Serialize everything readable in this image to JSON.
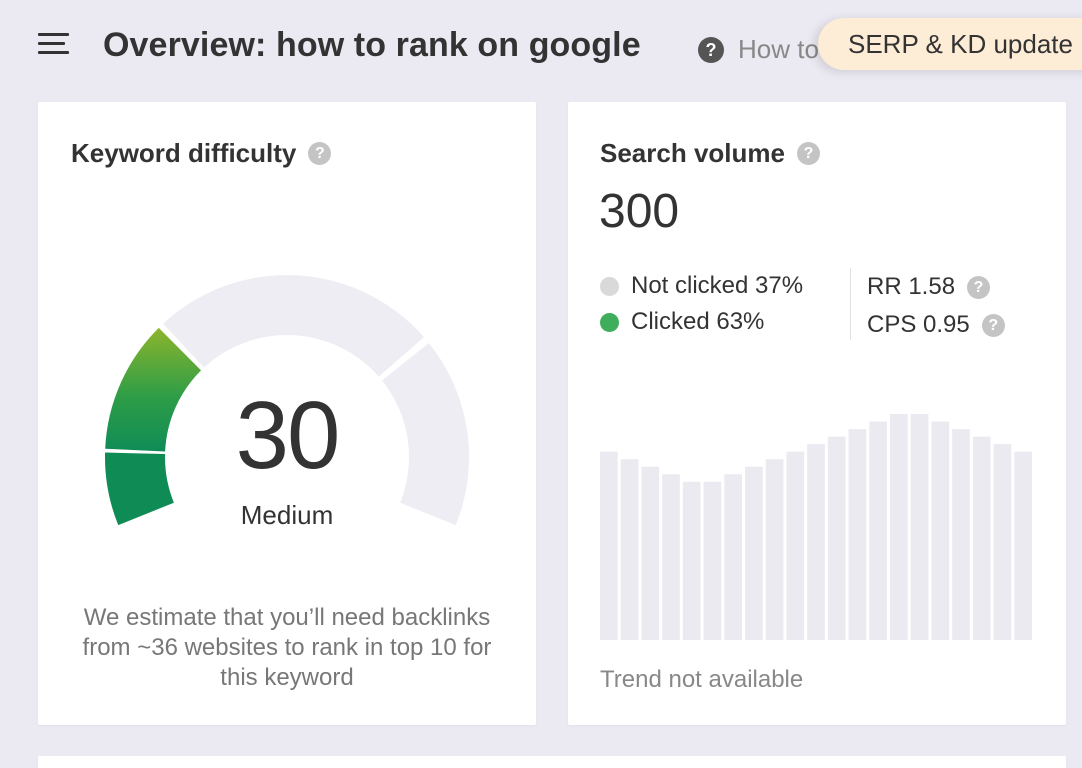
{
  "header": {
    "title": "Overview: how to rank on google",
    "help_icon": "question-icon",
    "help_text": "How to",
    "update_badge": "SERP & KD update"
  },
  "keyword_difficulty": {
    "title": "Keyword difficulty",
    "score": "30",
    "level": "Medium",
    "description": "We estimate that you’ll need backlinks from ~36 websites to rank in top 10 for this keyword",
    "gauge_fraction": 0.3,
    "colors": {
      "filled_top": "#8cb52c",
      "filled_bottom": "#0f8c56",
      "empty": "#eeedf3"
    }
  },
  "search_volume": {
    "title": "Search volume",
    "value": "300",
    "not_clicked": "Not clicked 37%",
    "clicked": "Clicked 63%",
    "rr": "RR 1.58",
    "cps": "CPS 0.95",
    "trend_note": "Trend not available",
    "trend_bars": [
      25,
      24,
      23,
      22,
      21,
      21,
      22,
      23,
      24,
      25,
      26,
      27,
      28,
      29,
      30,
      30,
      29,
      28,
      27,
      26,
      25
    ],
    "colors": {
      "clicked_dot": "#3fae5a",
      "not_clicked_dot": "#d9d9d9",
      "bar": "#ebeaf0"
    }
  }
}
